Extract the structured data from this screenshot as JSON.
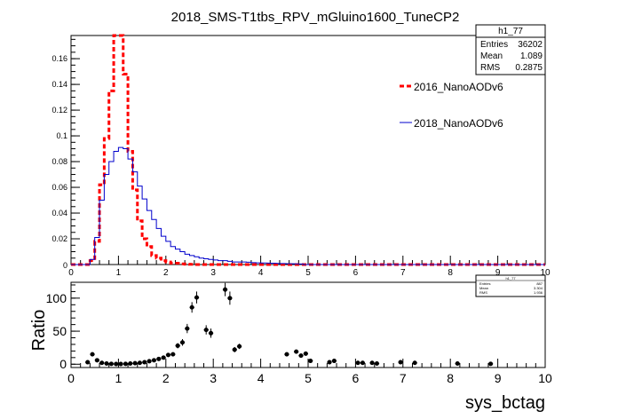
{
  "chart_data": [
    {
      "type": "line",
      "title": "2018_SMS-T1tbs_RPV_mGluino1600_TuneCP2",
      "xlim": [
        0,
        10
      ],
      "ylim": [
        0,
        0.178
      ],
      "x_ticks": [
        "0",
        "1",
        "2",
        "3",
        "4",
        "5",
        "6",
        "7",
        "8",
        "9",
        "10"
      ],
      "y_ticks": [
        {
          "v": 0.02,
          "label": "0.02"
        },
        {
          "v": 0.04,
          "label": "0.04"
        },
        {
          "v": 0.06,
          "label": "0.06"
        },
        {
          "v": 0.08,
          "label": "0.08"
        },
        {
          "v": 0.1,
          "label": "0.1"
        },
        {
          "v": 0.12,
          "label": "0.12"
        },
        {
          "v": 0.14,
          "label": "0.14"
        },
        {
          "v": 0.16,
          "label": "0.16"
        }
      ],
      "y_zero_label": "0",
      "bin_width": 0.1,
      "stats_box": {
        "name": "h1_77",
        "rows": [
          {
            "label": "Entries",
            "value": "36202"
          },
          {
            "label": "Mean",
            "value": "1.089"
          },
          {
            "label": "RMS",
            "value": "0.2875"
          }
        ]
      },
      "legend_placement": "right",
      "series": [
        {
          "name": "2016_NanoAODv6",
          "color": "#ff0000",
          "style": "dashed",
          "bin_lows": [
            0.4,
            0.5,
            0.6,
            0.7,
            0.8,
            0.9,
            1.0,
            1.1,
            1.2,
            1.3,
            1.4,
            1.5,
            1.6,
            1.7,
            1.8,
            1.9,
            2.0,
            2.1,
            2.2,
            2.3,
            2.4,
            2.5
          ],
          "values": [
            0.003,
            0.018,
            0.062,
            0.098,
            0.135,
            0.178,
            0.178,
            0.148,
            0.088,
            0.058,
            0.034,
            0.02,
            0.014,
            0.007,
            0.005,
            0.003,
            0.002,
            0.001,
            0.001,
            0.0005,
            0.0003,
            0.0002
          ]
        },
        {
          "name": "2018_NanoAODv6",
          "color": "#0000cc",
          "style": "solid",
          "bin_lows": [
            0.4,
            0.5,
            0.6,
            0.7,
            0.8,
            0.9,
            1.0,
            1.1,
            1.2,
            1.3,
            1.4,
            1.5,
            1.6,
            1.7,
            1.8,
            1.9,
            2.0,
            2.1,
            2.2,
            2.3,
            2.4,
            2.5,
            2.6,
            2.7,
            2.8,
            2.9,
            3.0,
            3.1,
            3.2,
            3.3,
            3.4,
            3.5,
            3.6,
            3.7,
            3.8,
            3.9,
            4.0,
            4.2,
            4.4,
            4.6,
            4.8
          ],
          "values": [
            0.004,
            0.021,
            0.05,
            0.07,
            0.08,
            0.088,
            0.091,
            0.09,
            0.082,
            0.072,
            0.061,
            0.051,
            0.042,
            0.035,
            0.028,
            0.022,
            0.018,
            0.014,
            0.012,
            0.01,
            0.008,
            0.007,
            0.006,
            0.005,
            0.0045,
            0.004,
            0.0035,
            0.003,
            0.003,
            0.0025,
            0.002,
            0.002,
            0.002,
            0.0018,
            0.0015,
            0.0013,
            0.0012,
            0.001,
            0.0008,
            0.0006,
            0.0004
          ]
        }
      ]
    },
    {
      "type": "scatter",
      "xlabel": "sys_bctag",
      "ylabel": "Ratio",
      "xlim": [
        0,
        10
      ],
      "ylim": [
        -5,
        124
      ],
      "x_ticks": [
        "0",
        "1",
        "2",
        "3",
        "4",
        "5",
        "6",
        "7",
        "8",
        "9",
        "10"
      ],
      "y_ticks": [
        {
          "v": 0,
          "label": "0"
        },
        {
          "v": 50,
          "label": "50"
        },
        {
          "v": 100,
          "label": "100"
        }
      ],
      "stats_box": {
        "name": "h1_77",
        "rows": [
          {
            "label": "Entries",
            "value": "887"
          },
          {
            "label": "Mean",
            "value": "3.304"
          },
          {
            "label": "RMS",
            "value": "1.936"
          }
        ]
      },
      "series": [
        {
          "color": "#000000",
          "points": [
            {
              "x": 0.35,
              "y": 3,
              "err": 2
            },
            {
              "x": 0.45,
              "y": 15,
              "err": 3
            },
            {
              "x": 0.55,
              "y": 6,
              "err": 2
            },
            {
              "x": 0.65,
              "y": 2,
              "err": 1
            },
            {
              "x": 0.75,
              "y": 1,
              "err": 1
            },
            {
              "x": 0.85,
              "y": 0.5,
              "err": 0.5
            },
            {
              "x": 0.95,
              "y": 0.3,
              "err": 0.3
            },
            {
              "x": 1.05,
              "y": 0.3,
              "err": 0.3
            },
            {
              "x": 1.15,
              "y": 0.5,
              "err": 0.5
            },
            {
              "x": 1.25,
              "y": 1,
              "err": 0.5
            },
            {
              "x": 1.35,
              "y": 1.5,
              "err": 0.5
            },
            {
              "x": 1.45,
              "y": 2,
              "err": 0.8
            },
            {
              "x": 1.55,
              "y": 3,
              "err": 1
            },
            {
              "x": 1.65,
              "y": 4.5,
              "err": 1
            },
            {
              "x": 1.75,
              "y": 6,
              "err": 1.5
            },
            {
              "x": 1.85,
              "y": 8,
              "err": 2
            },
            {
              "x": 1.95,
              "y": 10,
              "err": 2
            },
            {
              "x": 2.05,
              "y": 14,
              "err": 3
            },
            {
              "x": 2.15,
              "y": 15,
              "err": 3
            },
            {
              "x": 2.25,
              "y": 28,
              "err": 4
            },
            {
              "x": 2.35,
              "y": 33,
              "err": 5
            },
            {
              "x": 2.45,
              "y": 54,
              "err": 7
            },
            {
              "x": 2.55,
              "y": 86,
              "err": 8
            },
            {
              "x": 2.65,
              "y": 101,
              "err": 9
            },
            {
              "x": 2.85,
              "y": 52,
              "err": 7
            },
            {
              "x": 2.95,
              "y": 47,
              "err": 7
            },
            {
              "x": 3.25,
              "y": 113,
              "err": 10
            },
            {
              "x": 3.35,
              "y": 100,
              "err": 10
            },
            {
              "x": 3.45,
              "y": 22,
              "err": 4
            },
            {
              "x": 3.55,
              "y": 27,
              "err": 4
            },
            {
              "x": 4.55,
              "y": 15,
              "err": 3
            },
            {
              "x": 4.75,
              "y": 19,
              "err": 3
            },
            {
              "x": 4.85,
              "y": 13,
              "err": 3
            },
            {
              "x": 4.95,
              "y": 16,
              "err": 3
            },
            {
              "x": 5.05,
              "y": 5,
              "err": 2
            },
            {
              "x": 5.45,
              "y": 3,
              "err": 1.5
            },
            {
              "x": 5.55,
              "y": 5,
              "err": 2
            },
            {
              "x": 6.05,
              "y": 2,
              "err": 1
            },
            {
              "x": 6.15,
              "y": 2,
              "err": 1
            },
            {
              "x": 6.35,
              "y": 2,
              "err": 1
            },
            {
              "x": 6.45,
              "y": 1,
              "err": 1
            },
            {
              "x": 6.95,
              "y": 3,
              "err": 1.5
            },
            {
              "x": 7.25,
              "y": 2,
              "err": 1
            },
            {
              "x": 8.15,
              "y": 1,
              "err": 1
            },
            {
              "x": 8.85,
              "y": 0.5,
              "err": 0.5
            }
          ]
        }
      ]
    }
  ]
}
